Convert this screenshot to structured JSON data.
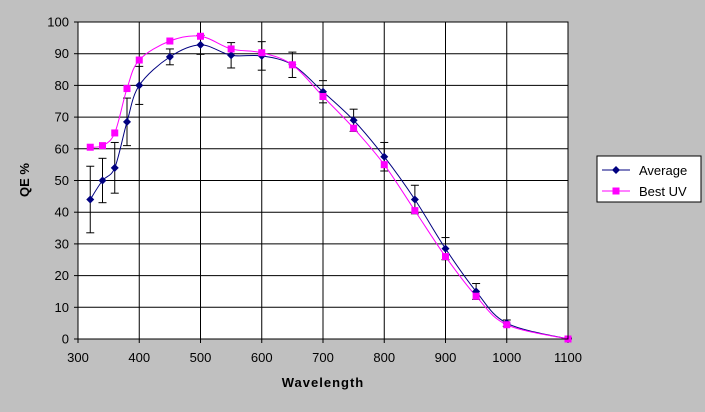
{
  "chart_data": {
    "type": "line",
    "title": "",
    "xlabel": "Wavelength",
    "ylabel": "QE %",
    "xlim": [
      300,
      1100
    ],
    "ylim": [
      0,
      100
    ],
    "x_ticks": [
      300,
      400,
      500,
      600,
      700,
      800,
      900,
      1000,
      1100
    ],
    "y_ticks": [
      0,
      10,
      20,
      30,
      40,
      50,
      60,
      70,
      80,
      90,
      100
    ],
    "grid": true,
    "legend_position": "right",
    "series": [
      {
        "name": "Average",
        "color": "#000080",
        "marker": "diamond",
        "x": [
          320,
          340,
          360,
          380,
          400,
          450,
          500,
          550,
          600,
          650,
          700,
          750,
          800,
          850,
          900,
          950,
          1000,
          1100
        ],
        "y": [
          44,
          50,
          54,
          68.5,
          80,
          89,
          92.8,
          89.5,
          89.3,
          86.5,
          78,
          69,
          57.5,
          44,
          28.5,
          15,
          5,
          0
        ],
        "error": [
          10.5,
          7,
          8,
          7.5,
          6,
          2.5,
          3,
          4,
          4.5,
          4,
          3.5,
          3.5,
          4.5,
          4.5,
          3.5,
          2.5,
          1,
          0.3
        ]
      },
      {
        "name": "Best UV",
        "color": "#ff00ff",
        "marker": "square",
        "x": [
          320,
          340,
          360,
          380,
          400,
          450,
          500,
          550,
          600,
          650,
          700,
          750,
          800,
          850,
          900,
          950,
          1000,
          1100
        ],
        "y": [
          60.5,
          61,
          65,
          79,
          88,
          94,
          95.5,
          91.5,
          90.3,
          86.5,
          76.5,
          66.5,
          55,
          40.5,
          26,
          13.5,
          4.5,
          0
        ]
      }
    ]
  }
}
